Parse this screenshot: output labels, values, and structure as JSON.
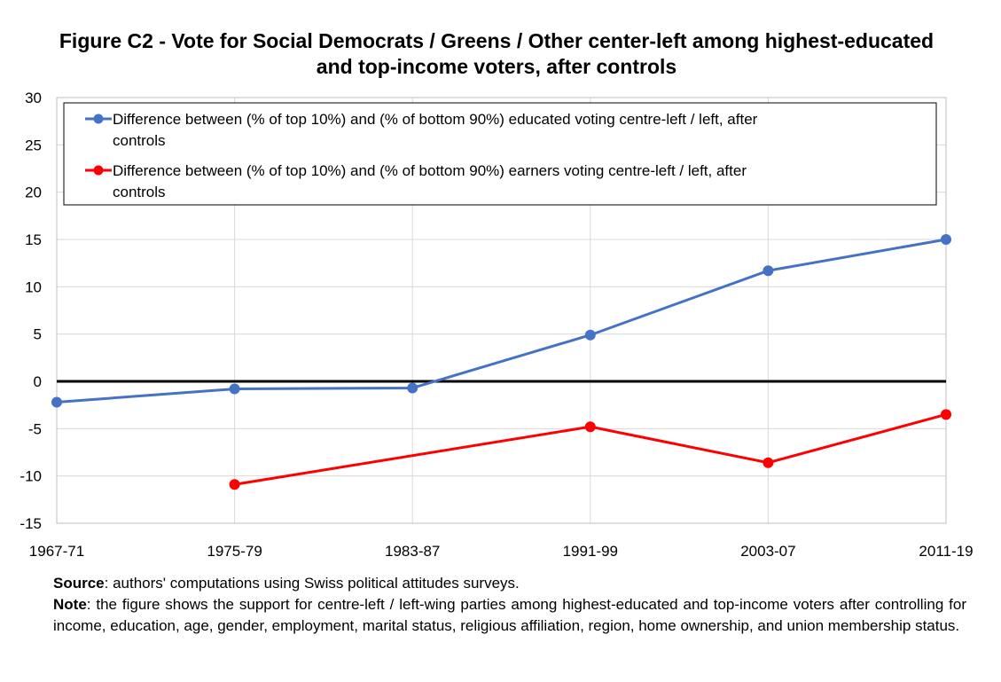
{
  "title": "Figure C2 - Vote for Social Democrats / Greens / Other center-left among highest-educated and top-income voters, after controls",
  "chart_data": {
    "type": "line",
    "categories": [
      "1967-71",
      "1975-79",
      "1983-87",
      "1991-99",
      "2003-07",
      "2011-19"
    ],
    "ylim": [
      -15,
      30
    ],
    "yticks": [
      30,
      25,
      20,
      15,
      10,
      5,
      0,
      -5,
      -10,
      -15
    ],
    "grid": "horizontal and vertical",
    "legend_position": "top",
    "series": [
      {
        "name": "Difference between (% of top 10%) and (% of bottom 90%) educated voting centre-left / left, after controls",
        "color": "#4472C4",
        "values": [
          -2.2,
          -0.8,
          -0.7,
          4.9,
          11.7,
          15.0
        ]
      },
      {
        "name": "Difference between (% of top 10%) and (% of bottom 90%) earners voting centre-left / left, after controls",
        "color": "#FF0000",
        "values": [
          null,
          -10.9,
          null,
          -4.8,
          -8.6,
          -3.5
        ]
      }
    ]
  },
  "footnote": {
    "source_label": "Source",
    "source_text": ": authors' computations using Swiss political attitudes surveys.",
    "note_label": "Note",
    "note_text": ": the figure shows the support for centre-left / left-wing parties among highest-educated and top-income voters after controlling for income, education, age, gender, employment, marital status, religious affiliation, region, home ownership, and union membership status."
  }
}
